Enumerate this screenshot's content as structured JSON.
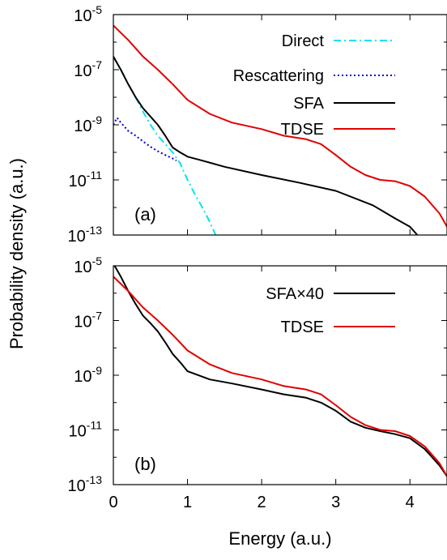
{
  "ylabel": "Probability density (a.u.)",
  "xlabel": "Energy (a.u.)",
  "chart_data": [
    {
      "type": "line",
      "panel_label": "(a)",
      "xlabel": "Energy (a.u.)",
      "ylabel": "Probability density (a.u.)",
      "xlim": [
        0,
        4.5
      ],
      "ylim": [
        1e-13,
        1e-05
      ],
      "yscale": "log",
      "xticks": [
        "0",
        "1",
        "2",
        "3",
        "4"
      ],
      "yticks": [
        {
          "base": "10",
          "exp": "-5",
          "value": 1e-05
        },
        {
          "base": "10",
          "exp": "-7",
          "value": 1e-07
        },
        {
          "base": "10",
          "exp": "-9",
          "value": 1e-09
        },
        {
          "base": "10",
          "exp": "-11",
          "value": 1e-11
        },
        {
          "base": "10",
          "exp": "-13",
          "value": 1e-13
        }
      ],
      "legend_position": "top-right",
      "grid": false,
      "series": [
        {
          "name": "Direct",
          "color": "#00e5ee",
          "style": "dash-dot",
          "x": [
            0,
            0.1,
            0.2,
            0.3,
            0.4,
            0.5,
            0.6,
            0.7,
            0.8,
            0.9,
            1.0,
            1.1,
            1.2,
            1.3,
            1.38
          ],
          "y": [
            3e-07,
            1e-07,
            3e-08,
            1e-08,
            3e-09,
            1e-09,
            4e-10,
            2e-10,
            1e-10,
            4e-11,
            1e-11,
            3e-12,
            1e-12,
            3e-13,
            1e-13
          ]
        },
        {
          "name": "Rescattering",
          "color": "#0000cc",
          "style": "dotted",
          "x": [
            0,
            0.05,
            0.1,
            0.2,
            0.3,
            0.4,
            0.5,
            0.6,
            0.7,
            0.8,
            0.85
          ],
          "y": [
            1e-09,
            1.8e-09,
            1.2e-09,
            6e-10,
            4e-10,
            2.5e-10,
            1.6e-10,
            1.1e-10,
            8e-11,
            6e-11,
            5e-11
          ]
        },
        {
          "name": "SFA",
          "color": "#000000",
          "style": "solid",
          "x": [
            0,
            0.1,
            0.2,
            0.3,
            0.4,
            0.5,
            0.6,
            0.7,
            0.8,
            0.9,
            1.0,
            1.2,
            1.5,
            2.0,
            2.5,
            3.0,
            3.5,
            3.8,
            4.0,
            4.1
          ],
          "y": [
            3e-07,
            1e-07,
            3e-08,
            1e-08,
            4e-09,
            2e-09,
            1e-09,
            4e-10,
            1.5e-10,
            1e-10,
            7e-11,
            5e-11,
            3e-11,
            1.5e-11,
            8e-12,
            4e-12,
            1.2e-12,
            4e-13,
            2e-13,
            1e-13
          ]
        },
        {
          "name": "TDSE",
          "color": "#e00000",
          "style": "solid",
          "x": [
            0,
            0.2,
            0.4,
            0.6,
            0.8,
            1.0,
            1.3,
            1.6,
            2.0,
            2.3,
            2.6,
            2.8,
            3.0,
            3.2,
            3.4,
            3.6,
            3.8,
            4.0,
            4.2,
            4.4,
            4.5
          ],
          "y": [
            4e-06,
            1.2e-06,
            3e-07,
            1e-07,
            3e-08,
            8e-09,
            2.5e-09,
            1.2e-09,
            7e-10,
            4e-10,
            3e-10,
            2e-10,
            8e-11,
            3e-11,
            1.5e-11,
            1e-11,
            9e-12,
            6e-12,
            2.5e-12,
            6e-13,
            2e-13
          ]
        }
      ]
    },
    {
      "type": "line",
      "panel_label": "(b)",
      "xlabel": "Energy (a.u.)",
      "ylabel": "Probability density (a.u.)",
      "xlim": [
        0,
        4.5
      ],
      "ylim": [
        1e-13,
        1e-05
      ],
      "yscale": "log",
      "xticks": [
        "0",
        "1",
        "2",
        "3",
        "4"
      ],
      "yticks": [
        {
          "base": "10",
          "exp": "-5",
          "value": 1e-05
        },
        {
          "base": "10",
          "exp": "-7",
          "value": 1e-07
        },
        {
          "base": "10",
          "exp": "-9",
          "value": 1e-09
        },
        {
          "base": "10",
          "exp": "-11",
          "value": 1e-11
        },
        {
          "base": "10",
          "exp": "-13",
          "value": 1e-13
        }
      ],
      "legend_position": "top-right",
      "grid": false,
      "series": [
        {
          "name": "SFA×40",
          "color": "#000000",
          "style": "solid",
          "x": [
            0,
            0.1,
            0.2,
            0.3,
            0.4,
            0.5,
            0.6,
            0.7,
            0.8,
            0.9,
            1.0,
            1.3,
            1.6,
            2.0,
            2.3,
            2.6,
            2.8,
            3.0,
            3.2,
            3.4,
            3.6,
            3.8,
            4.0,
            4.2,
            4.4,
            4.5
          ],
          "y": [
            1.2e-05,
            4e-06,
            1.2e-06,
            4e-07,
            1.5e-07,
            8e-08,
            4e-08,
            1.6e-08,
            6e-09,
            3e-09,
            1.4e-09,
            7e-10,
            5e-10,
            3e-10,
            2e-10,
            1.5e-10,
            1e-10,
            5e-11,
            2e-11,
            1.2e-11,
            9e-12,
            7e-12,
            5e-12,
            2e-12,
            5e-13,
            2e-13
          ]
        },
        {
          "name": "TDSE",
          "color": "#e00000",
          "style": "solid",
          "x": [
            0,
            0.2,
            0.4,
            0.6,
            0.8,
            1.0,
            1.3,
            1.6,
            2.0,
            2.3,
            2.6,
            2.8,
            3.0,
            3.2,
            3.4,
            3.6,
            3.8,
            4.0,
            4.2,
            4.4,
            4.5
          ],
          "y": [
            4e-06,
            1.2e-06,
            3e-07,
            1e-07,
            3e-08,
            8e-09,
            2.5e-09,
            1.2e-09,
            7e-10,
            4e-10,
            3e-10,
            2e-10,
            8e-11,
            3e-11,
            1.5e-11,
            1e-11,
            9e-12,
            6e-12,
            2.5e-12,
            6e-13,
            2e-13
          ]
        }
      ]
    }
  ]
}
